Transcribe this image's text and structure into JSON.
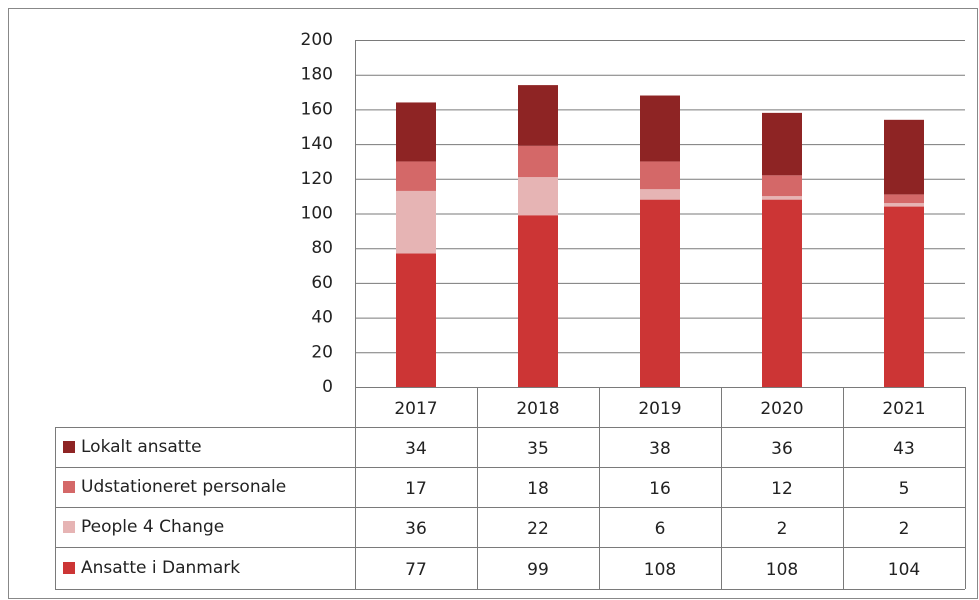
{
  "chart_data": {
    "type": "bar",
    "stacked": true,
    "categories": [
      "2017",
      "2018",
      "2019",
      "2020",
      "2021"
    ],
    "series": [
      {
        "name": "Lokalt ansatte",
        "color": "#8e2424",
        "values": [
          34,
          35,
          38,
          36,
          43
        ]
      },
      {
        "name": "Udstationeret personale",
        "color": "#d46868",
        "values": [
          17,
          18,
          16,
          12,
          5
        ]
      },
      {
        "name": "People 4 Change",
        "color": "#e6b4b4",
        "values": [
          36,
          22,
          6,
          2,
          2
        ]
      },
      {
        "name": "Ansatte i Danmark",
        "color": "#cc3535",
        "values": [
          77,
          99,
          108,
          108,
          104
        ]
      }
    ],
    "ylim": [
      0,
      200
    ],
    "yticks": [
      0,
      20,
      40,
      60,
      80,
      100,
      120,
      140,
      160,
      180,
      200
    ],
    "grid": true
  }
}
